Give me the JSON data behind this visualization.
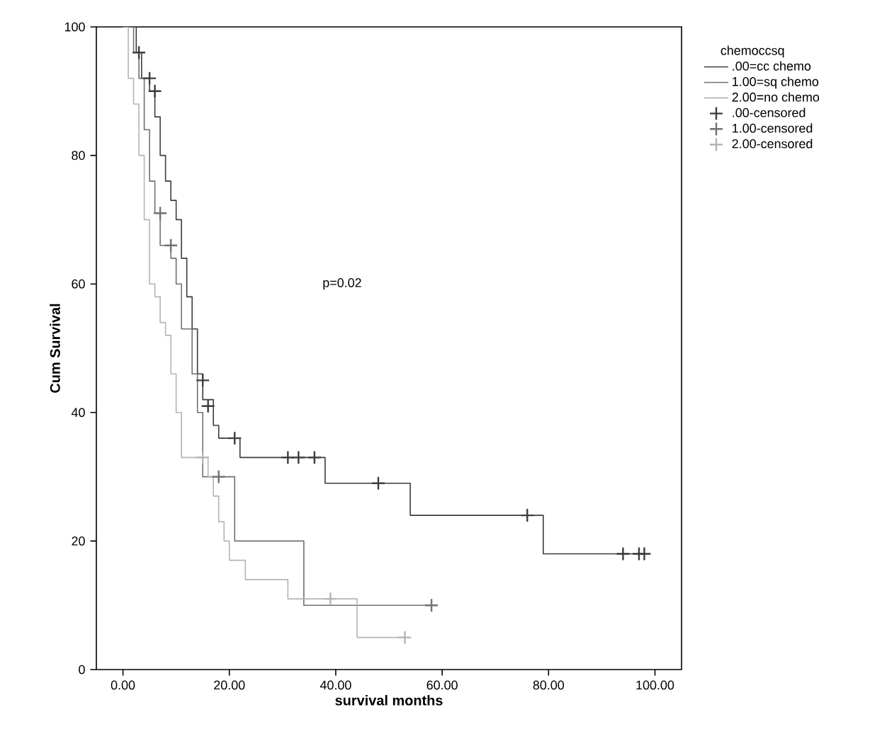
{
  "chart_data": {
    "type": "step",
    "xlabel": "survival months",
    "ylabel": "Cum Survival",
    "legend_title": "chemoccsq",
    "legend": "top right",
    "xlim": [
      -5,
      105
    ],
    "ylim": [
      0,
      100
    ],
    "xticks": [
      {
        "value": 0,
        "label": "0.00"
      },
      {
        "value": 20,
        "label": "20.00"
      },
      {
        "value": 40,
        "label": "40.00"
      },
      {
        "value": 60,
        "label": "60.00"
      },
      {
        "value": 80,
        "label": "80.00"
      },
      {
        "value": 100,
        "label": "100.00"
      }
    ],
    "yticks": [
      0,
      20,
      40,
      60,
      80,
      100
    ],
    "annotations": [
      "p=0.02"
    ],
    "series": [
      {
        "name": ".00=cc chemo",
        "color": "#3c3c3c",
        "x": [
          0,
          2.5,
          3.5,
          5,
          6,
          7,
          8,
          9,
          10,
          11,
          12,
          13,
          14,
          15,
          17,
          18,
          22,
          38,
          54,
          79,
          98
        ],
        "values": [
          100,
          96,
          92,
          90,
          86,
          80,
          76,
          73,
          70,
          64,
          58,
          53,
          46,
          42,
          38,
          36,
          33,
          29,
          24,
          18,
          18
        ]
      },
      {
        "name": "1.00=sq chemo",
        "color": "#707070",
        "x": [
          0,
          2,
          3,
          4,
          5,
          6,
          7,
          9,
          10,
          11,
          13,
          14,
          15,
          21,
          34,
          58
        ],
        "values": [
          100,
          96,
          92,
          84,
          76,
          71,
          66,
          64,
          60,
          53,
          46,
          40,
          30,
          20,
          10,
          10
        ]
      },
      {
        "name": "2.00=no chemo",
        "color": "#b4b4b4",
        "x": [
          0,
          1,
          2,
          3,
          4,
          5,
          6,
          7,
          8,
          9,
          10,
          11,
          16,
          17,
          18,
          19,
          20,
          23,
          31,
          44,
          53
        ],
        "values": [
          100,
          92,
          88,
          80,
          70,
          60,
          58,
          54,
          52,
          46,
          40,
          33,
          30,
          27,
          23,
          20,
          17,
          14,
          11,
          5,
          5
        ]
      },
      {
        "name": ".00-censored",
        "type": "scatter",
        "marker": "cross",
        "color": "#3c3c3c",
        "x": [
          3,
          5,
          6,
          15,
          16,
          21,
          31,
          33,
          36,
          48,
          76,
          94,
          97,
          98
        ],
        "values": [
          96,
          92,
          90,
          45,
          41,
          36,
          33,
          33,
          33,
          29,
          24,
          18,
          18,
          18
        ]
      },
      {
        "name": "1.00-censored",
        "type": "scatter",
        "marker": "cross",
        "color": "#707070",
        "x": [
          7,
          9,
          18,
          58
        ],
        "values": [
          71,
          66,
          30,
          10
        ]
      },
      {
        "name": "2.00-censored",
        "type": "scatter",
        "marker": "cross",
        "color": "#b4b4b4",
        "x": [
          15,
          39,
          53
        ],
        "values": [
          33,
          11,
          5
        ]
      }
    ]
  }
}
